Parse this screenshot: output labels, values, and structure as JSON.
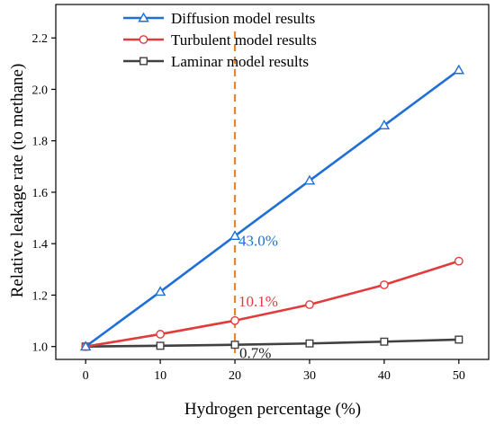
{
  "chart_data": {
    "type": "line",
    "xlabel": "Hydrogen percentage (%)",
    "ylabel": "Relative leakage rate (to methane)",
    "xlim": [
      -4,
      54
    ],
    "ylim": [
      0.95,
      2.33
    ],
    "xticks": [
      0,
      10,
      20,
      30,
      40,
      50
    ],
    "yticks": [
      1.0,
      1.2,
      1.4,
      1.6,
      1.8,
      2.0,
      2.2
    ],
    "x": [
      0,
      10,
      20,
      30,
      40,
      50
    ],
    "series": [
      {
        "name": "Diffusion model results",
        "values": [
          1.0,
          1.213,
          1.43,
          1.645,
          1.86,
          2.075
        ],
        "color": "#1f6fd6",
        "marker": "triangle"
      },
      {
        "name": "Turbulent model results",
        "values": [
          1.0,
          1.048,
          1.101,
          1.163,
          1.24,
          1.332
        ],
        "color": "#e03c3c",
        "marker": "circle"
      },
      {
        "name": "Laminar model results",
        "values": [
          1.0,
          1.003,
          1.007,
          1.012,
          1.019,
          1.027
        ],
        "color": "#404040",
        "marker": "square"
      }
    ],
    "reference_line": {
      "x": 20,
      "color": "#e8862c",
      "style": "dashed"
    },
    "annotations": [
      {
        "text": "43.0%",
        "x": 20,
        "y": 1.43,
        "color": "#1f6fd6"
      },
      {
        "text": "10.1%",
        "x": 20,
        "y": 1.101,
        "color": "#e03c3c"
      },
      {
        "text": "0.7%",
        "x": 20,
        "y": 1.007,
        "color": "#222222"
      }
    ],
    "legend_position": "top-center",
    "grid": false
  }
}
